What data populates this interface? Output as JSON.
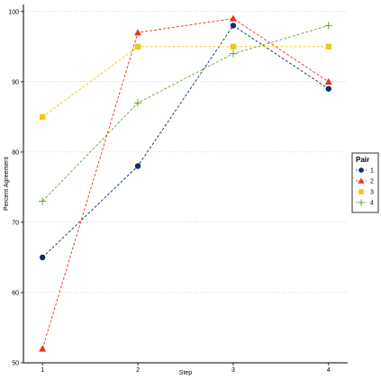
{
  "chart_data": {
    "type": "line",
    "title": "",
    "xlabel": "Step",
    "ylabel": "Percent Agreement",
    "x": [
      1,
      2,
      3,
      4
    ],
    "xlim": [
      0.8,
      4.2
    ],
    "ylim": [
      50,
      101
    ],
    "yticks": [
      50,
      60,
      70,
      80,
      90,
      100
    ],
    "grid": "horizontal-dotted",
    "legend": {
      "title": "Pair",
      "placement": "right"
    },
    "series": [
      {
        "name": "1",
        "values": [
          65,
          78,
          98,
          89
        ],
        "color": "#0c2f69",
        "marker": "circle"
      },
      {
        "name": "2",
        "values": [
          52,
          97,
          99,
          90
        ],
        "color": "#e8331f",
        "marker": "triangle"
      },
      {
        "name": "3",
        "values": [
          85,
          95,
          95,
          95
        ],
        "color": "#f5c518",
        "marker": "square"
      },
      {
        "name": "4",
        "values": [
          73,
          87,
          94,
          98
        ],
        "color": "#6aa531",
        "marker": "plus"
      }
    ]
  }
}
